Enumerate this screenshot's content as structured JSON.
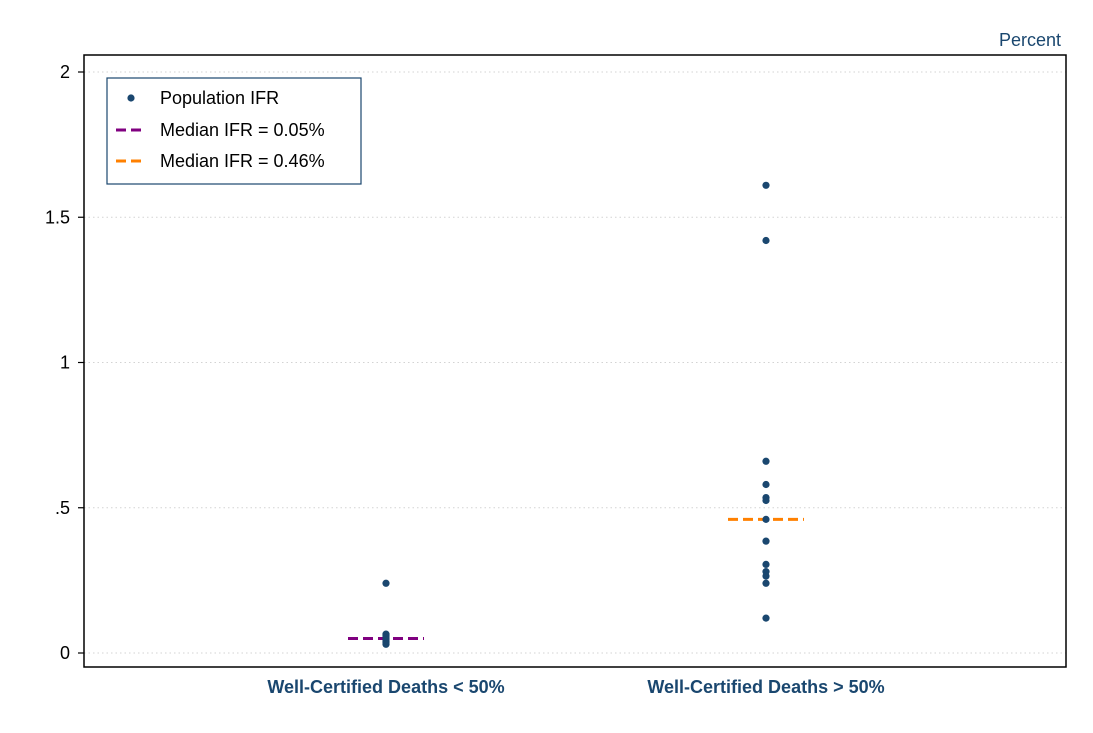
{
  "chart_data": {
    "type": "scatter",
    "title": "",
    "ylabel": "Percent",
    "xlabel": "",
    "ylim": [
      0,
      2
    ],
    "yticks": [
      {
        "value": 0,
        "label": "0"
      },
      {
        "value": 0.5,
        "label": ".5"
      },
      {
        "value": 1,
        "label": "1"
      },
      {
        "value": 1.5,
        "label": "1.5"
      },
      {
        "value": 2,
        "label": "2"
      }
    ],
    "grid": true,
    "legend_position": "top-left",
    "categories": [
      "Well-Certified Deaths < 50%",
      "Well-Certified Deaths > 50%"
    ],
    "series": [
      {
        "name": "Population IFR",
        "color": "#1a476f",
        "points": [
          {
            "category": 0,
            "values": [
              0.24,
              0.065,
              0.06,
              0.055,
              0.05,
              0.045,
              0.04,
              0.035,
              0.03
            ]
          },
          {
            "category": 1,
            "values": [
              1.61,
              1.42,
              0.66,
              0.58,
              0.535,
              0.525,
              0.46,
              0.385,
              0.305,
              0.28,
              0.265,
              0.24,
              0.12
            ]
          }
        ]
      },
      {
        "name": "Median IFR = 0.05%",
        "color": "#800080",
        "style": "dashed",
        "category": 0,
        "value": 0.05
      },
      {
        "name": "Median IFR = 0.46%",
        "color": "#ff8000",
        "style": "dashed",
        "category": 1,
        "value": 0.46
      }
    ],
    "colors": {
      "axis": "#000000",
      "grid": "#d3d3d3",
      "category_label": "#1a476f",
      "unit_label": "#1a476f",
      "legend_border": "#1a476f"
    }
  }
}
